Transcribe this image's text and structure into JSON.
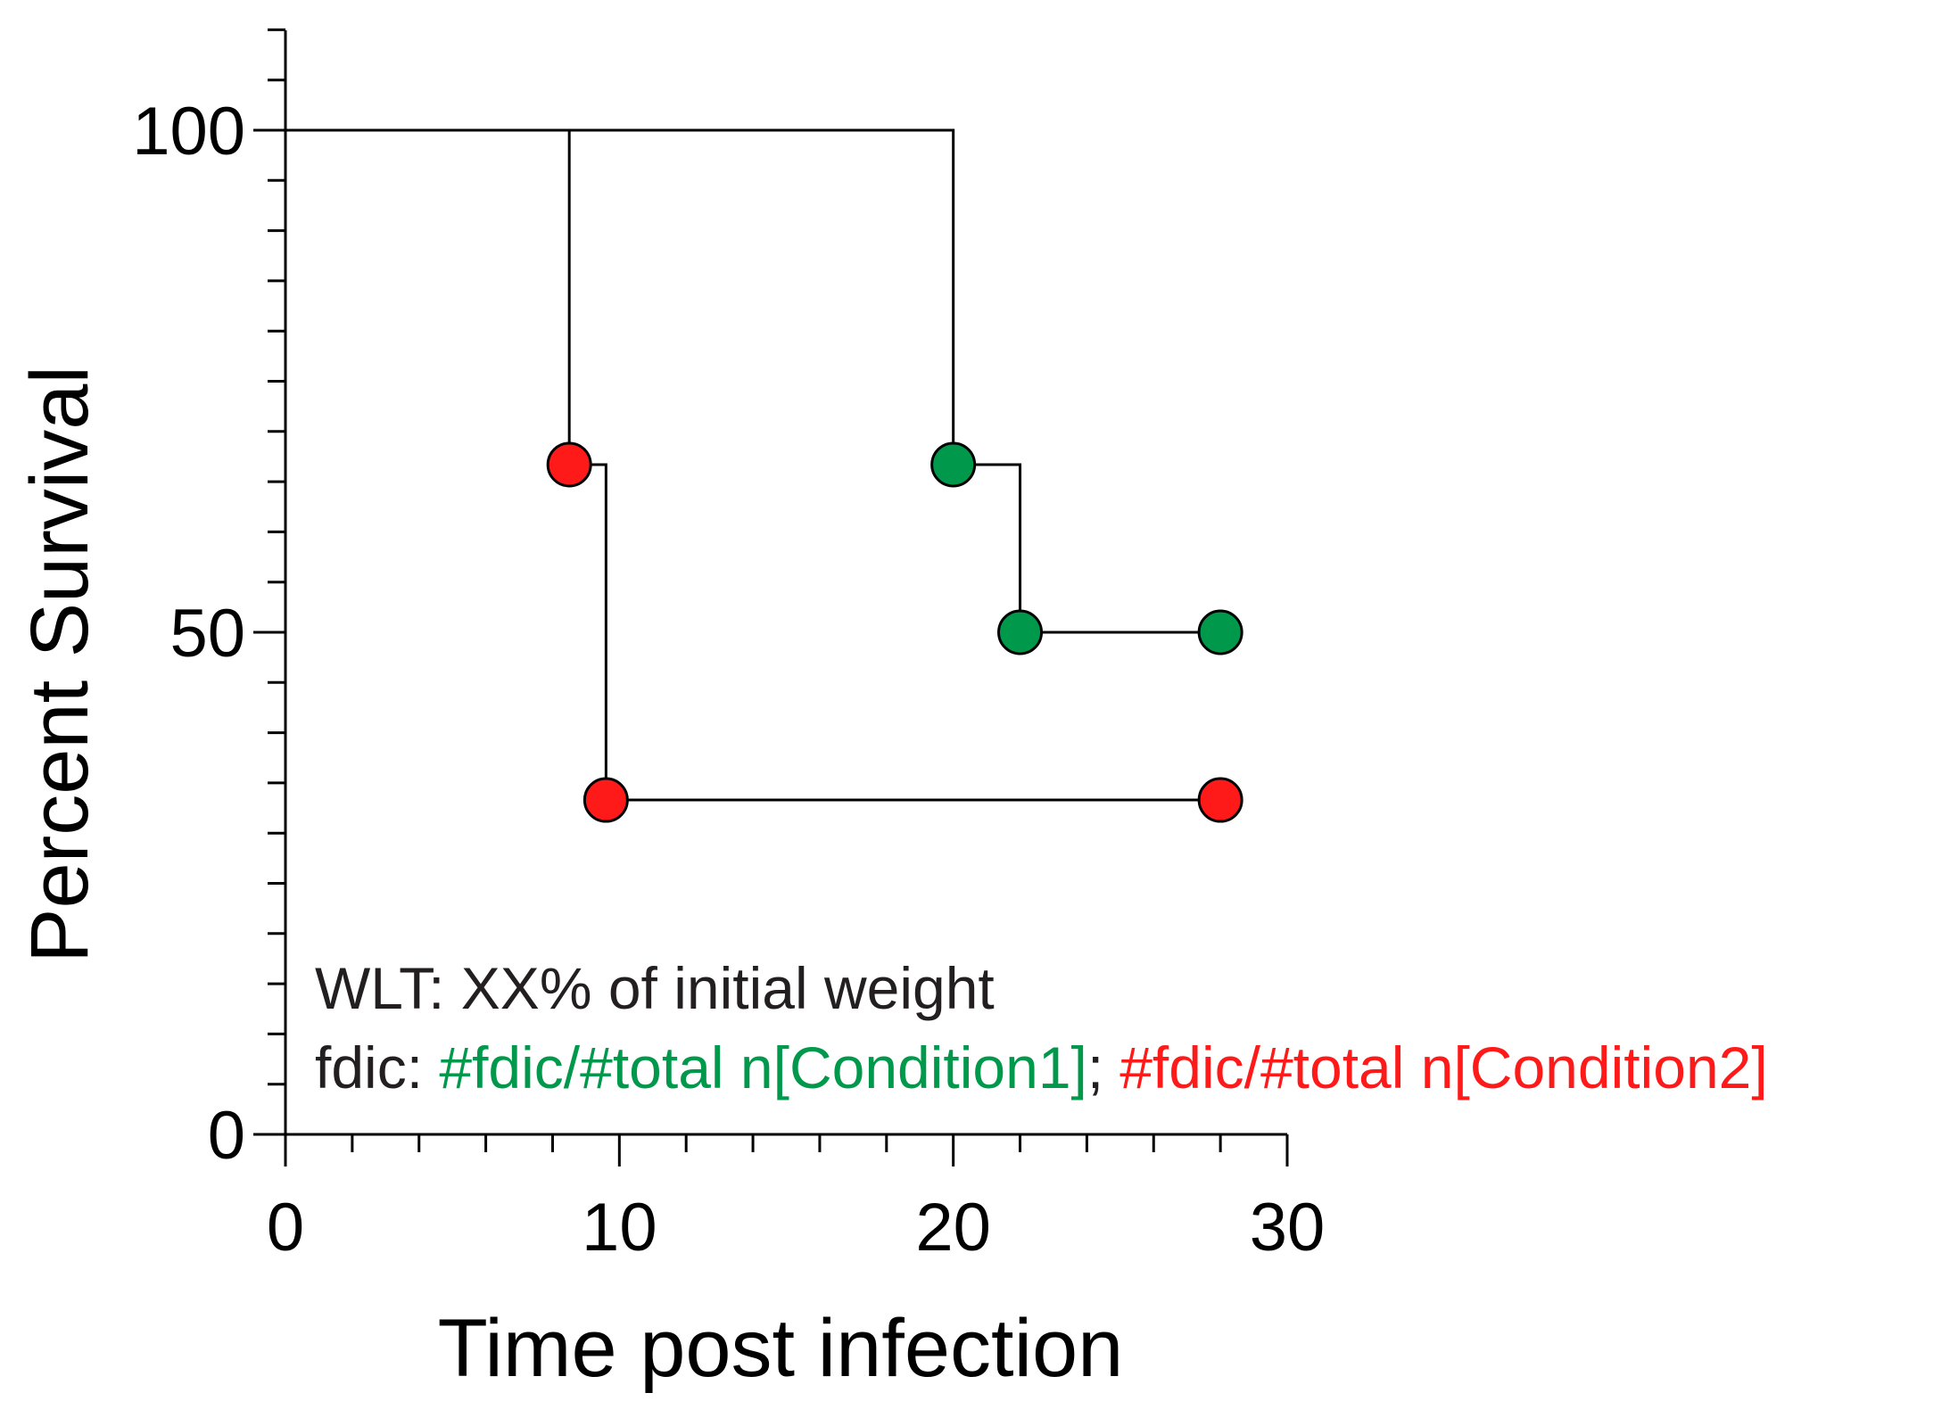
{
  "chart_data": {
    "type": "line",
    "subtype": "kaplan-meier-step",
    "title": "",
    "xlabel": "Time post infection",
    "ylabel": "Percent Survival",
    "xlim": [
      0,
      30
    ],
    "ylim": [
      0,
      110
    ],
    "x_major_ticks": [
      0,
      10,
      20,
      30
    ],
    "x_minor_step": 2,
    "y_major_ticks": [
      0,
      50,
      100
    ],
    "y_minor_step": 5,
    "grid": false,
    "series": [
      {
        "name": "Condition1",
        "color": "#00994c",
        "step_x": [
          0,
          20,
          22,
          28
        ],
        "step_y": [
          100,
          66.7,
          50,
          50
        ],
        "markers": [
          {
            "x": 20,
            "y": 66.7
          },
          {
            "x": 22,
            "y": 50
          },
          {
            "x": 28,
            "y": 50
          }
        ]
      },
      {
        "name": "Condition2",
        "color": "#ff1a1a",
        "step_x": [
          0,
          8.5,
          9.6,
          28
        ],
        "step_y": [
          100,
          66.7,
          33.3,
          33.3
        ],
        "markers": [
          {
            "x": 8.5,
            "y": 66.7
          },
          {
            "x": 9.6,
            "y": 33.3
          },
          {
            "x": 28,
            "y": 33.3
          }
        ]
      }
    ],
    "annotations": {
      "line1": "WLT: XX% of initial weight",
      "line2_prefix": "fdic: ",
      "line2_cond1": "#fdic/#total n[Condition1]",
      "line2_sep": ";",
      "line2_cond2": "#fdic/#total n[Condition2]"
    },
    "annotation_colors": {
      "default": "#231f20",
      "cond1": "#00994c",
      "cond2": "#ff1a1a"
    }
  }
}
